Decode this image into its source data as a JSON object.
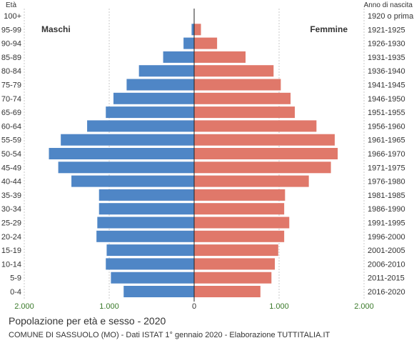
{
  "title": "Popolazione per età e sesso - 2020",
  "subtitle": "COMUNE DI SASSUOLO (MO) - Dati ISTAT 1° gennaio 2020 - Elaborazione TUTTITALIA.IT",
  "chart_data": {
    "type": "bar",
    "orientation": "horizontal-pyramid",
    "left_axis_title": "Età",
    "right_axis_title": "Anno di nascita",
    "categories": [
      "100+",
      "95-99",
      "90-94",
      "85-89",
      "80-84",
      "75-79",
      "70-74",
      "65-69",
      "60-64",
      "55-59",
      "50-54",
      "45-49",
      "40-44",
      "35-39",
      "30-34",
      "25-29",
      "20-24",
      "15-19",
      "10-14",
      "5-9",
      "0-4"
    ],
    "birth_years": [
      "1920 o prima",
      "1921-1925",
      "1926-1930",
      "1931-1935",
      "1936-1940",
      "1941-1945",
      "1946-1950",
      "1951-1955",
      "1956-1960",
      "1961-1965",
      "1966-1970",
      "1971-1975",
      "1976-1980",
      "1981-1985",
      "1986-1990",
      "1991-1995",
      "1996-2000",
      "2001-2005",
      "2006-2010",
      "2011-2015",
      "2016-2020"
    ],
    "series": [
      {
        "name": "Maschi",
        "color": "#4f86c6",
        "values": [
          3,
          30,
          125,
          365,
          650,
          795,
          950,
          1040,
          1260,
          1570,
          1710,
          1600,
          1445,
          1120,
          1120,
          1140,
          1150,
          1030,
          1040,
          980,
          830
        ]
      },
      {
        "name": "Femmine",
        "color": "#e0786a",
        "values": [
          3,
          80,
          270,
          605,
          935,
          1020,
          1135,
          1185,
          1440,
          1655,
          1690,
          1610,
          1350,
          1070,
          1060,
          1120,
          1060,
          990,
          950,
          910,
          780
        ]
      }
    ],
    "xlim": [
      -2000,
      2000
    ],
    "x_ticks": [
      -2000,
      -1000,
      0,
      1000,
      2000
    ],
    "x_tick_labels": [
      "2.000",
      "1.000",
      "0",
      "1.000",
      "2.000"
    ],
    "grid": true,
    "legend": "inside-top"
  }
}
